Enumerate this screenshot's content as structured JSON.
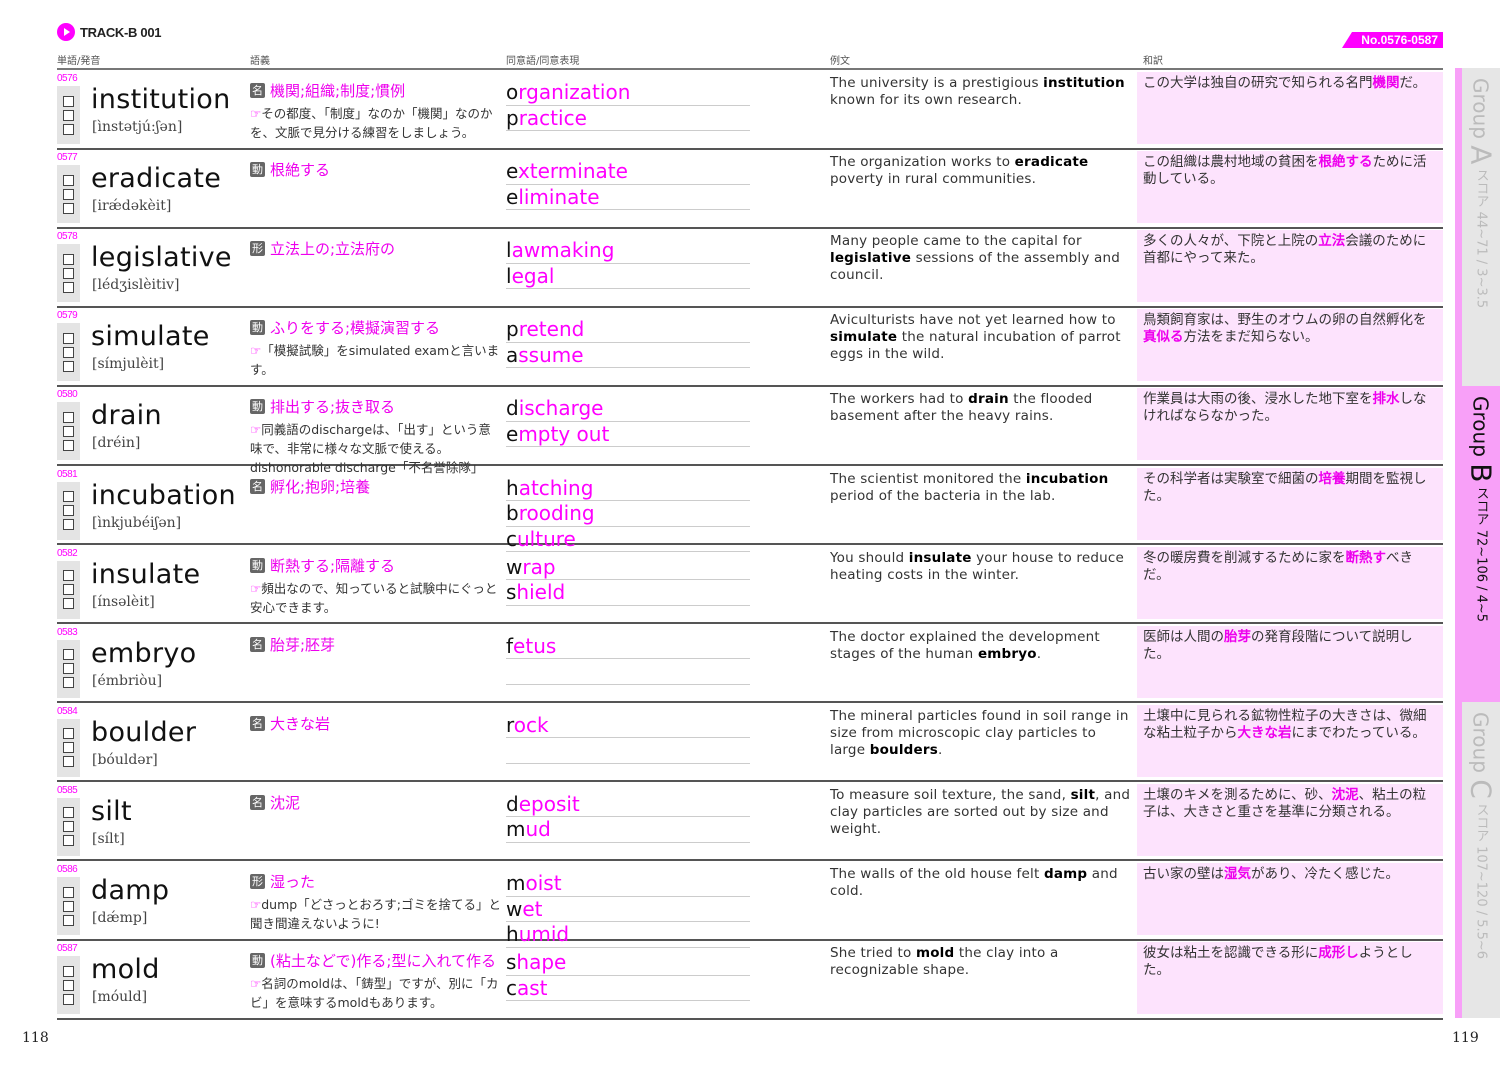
{
  "header": {
    "track": "TRACK-B 001",
    "range": "No.0576-0587",
    "col_word": "単語/発音",
    "col_meaning": "語義",
    "col_synonym": "同意語/同意表現",
    "col_example": "例文",
    "col_translation": "和訳"
  },
  "pos_labels": {
    "noun": "名",
    "verb": "動",
    "adj": "形"
  },
  "icons": {
    "play": "play-circle-icon",
    "note": "pointing-hand-icon",
    "checkbox": "checkbox-icon"
  },
  "colors": {
    "accent": "#ff00ff",
    "translation_bg": "#fde3fd"
  },
  "rows": [
    {
      "num": "0576",
      "word": "institution",
      "ipa": "[ìnstətjú:ʃən]",
      "pos": "名",
      "meaning": "機関;組織;制度;慣例",
      "note": "その都度、「制度」なのか「機関」なのかを、文脈で見分ける練習をしましょう。",
      "synonyms": [
        "organization",
        "practice"
      ],
      "slots": 2,
      "ex": [
        "The university is a prestigious ",
        "institution",
        " known for its own research."
      ],
      "tr": [
        "この大学は独自の研究で知られる名門",
        "機関",
        "だ。"
      ]
    },
    {
      "num": "0577",
      "word": "eradicate",
      "ipa": "[irǽdəkèit]",
      "pos": "動",
      "meaning": "根絶する",
      "note": "",
      "synonyms": [
        "exterminate",
        "eliminate"
      ],
      "slots": 2,
      "ex": [
        "The organization works to ",
        "eradicate",
        " poverty in rural communities."
      ],
      "tr": [
        "この組織は農村地域の貧困を",
        "根絶する",
        "ために活動している。"
      ]
    },
    {
      "num": "0578",
      "word": "legislative",
      "ipa": "[lédʒislèitiv]",
      "pos": "形",
      "meaning": "立法上の;立法府の",
      "note": "",
      "synonyms": [
        "lawmaking",
        "legal"
      ],
      "slots": 2,
      "ex": [
        "Many people came to the capital for ",
        "legislative",
        " sessions of the assembly and council."
      ],
      "tr": [
        "多くの人々が、下院と上院の",
        "立法",
        "会議のために首都にやって来た。"
      ]
    },
    {
      "num": "0579",
      "word": "simulate",
      "ipa": "[símjulèit]",
      "pos": "動",
      "meaning": "ふりをする;模擬演習する",
      "note": "「模擬試験」をsimulated examと言います。",
      "synonyms": [
        "pretend",
        "assume"
      ],
      "slots": 2,
      "ex": [
        "Aviculturists have not yet learned how to ",
        "simulate",
        " the natural incubation of parrot eggs in the wild."
      ],
      "tr": [
        "鳥類飼育家は、野生のオウムの卵の自然孵化を",
        "真似る",
        "方法をまだ知らない。"
      ]
    },
    {
      "num": "0580",
      "word": "drain",
      "ipa": "[dréin]",
      "pos": "動",
      "meaning": "排出する;抜き取る",
      "note": "同義語のdischargeは、「出す」という意味で、非常に様々な文脈で使える。dishonorable discharge「不名誉除隊」",
      "synonyms": [
        "discharge",
        "empty out"
      ],
      "slots": 2,
      "ex": [
        "The workers had to ",
        "drain",
        " the flooded basement after the heavy rains."
      ],
      "tr": [
        "作業員は大雨の後、浸水した地下室を",
        "排水",
        "しなければならなかった。"
      ]
    },
    {
      "num": "0581",
      "word": "incubation",
      "ipa": "[ìnkjubéiʃən]",
      "pos": "名",
      "meaning": "孵化;抱卵;培養",
      "note": "",
      "synonyms": [
        "hatching",
        "brooding",
        "culture"
      ],
      "slots": 3,
      "ex": [
        "The scientist monitored the ",
        "incubation",
        " period of the bacteria in the lab."
      ],
      "tr": [
        "その科学者は実験室で細菌の",
        "培養",
        "期間を監視した。"
      ]
    },
    {
      "num": "0582",
      "word": "insulate",
      "ipa": "[ínsəlèit]",
      "pos": "動",
      "meaning": "断熱する;隔離する",
      "note": "頻出なので、知っていると試験中にぐっと安心できます。",
      "synonyms": [
        "wrap",
        "shield"
      ],
      "slots": 2,
      "ex": [
        "You should ",
        "insulate",
        " your house to reduce heating costs in the winter."
      ],
      "tr": [
        "冬の暖房費を削減するために家を",
        "断熱す",
        "べきだ。"
      ]
    },
    {
      "num": "0583",
      "word": "embryo",
      "ipa": "[émbriòu]",
      "pos": "名",
      "meaning": "胎芽;胚芽",
      "note": "",
      "synonyms": [
        "fetus"
      ],
      "slots": 2,
      "ex": [
        "The doctor explained the development stages of the human ",
        "embryo",
        "."
      ],
      "tr": [
        "医師は人間の",
        "胎芽",
        "の発育段階について説明した。"
      ]
    },
    {
      "num": "0584",
      "word": "boulder",
      "ipa": "[bóuldər]",
      "pos": "名",
      "meaning": "大きな岩",
      "note": "",
      "synonyms": [
        "rock"
      ],
      "slots": 2,
      "ex": [
        "The mineral particles found in soil range in size from microscopic clay particles to large ",
        "boulders",
        "."
      ],
      "tr": [
        "土壌中に見られる鉱物性粒子の大きさは、微細な粘土粒子から",
        "大きな岩",
        "にまでわたっている。"
      ]
    },
    {
      "num": "0585",
      "word": "silt",
      "ipa": "[sílt]",
      "pos": "名",
      "meaning": "沈泥",
      "note": "",
      "synonyms": [
        "deposit",
        "mud"
      ],
      "slots": 2,
      "ex": [
        "To measure soil texture, the sand, ",
        "silt",
        ", and clay particles are sorted out by size and weight."
      ],
      "tr": [
        "土壌のキメを測るために、砂、",
        "沈泥",
        "、粘土の粒子は、大きさと重さを基準に分類される。"
      ]
    },
    {
      "num": "0586",
      "word": "damp",
      "ipa": "[dǽmp]",
      "pos": "形",
      "meaning": "湿った",
      "note": "dump「どさっとおろす;ゴミを捨てる」と聞き間違えないように!",
      "synonyms": [
        "moist",
        "wet",
        "humid"
      ],
      "slots": 3,
      "ex": [
        "The walls of the old house felt ",
        "damp",
        " and cold."
      ],
      "tr": [
        "古い家の壁は",
        "湿気",
        "があり、冷たく感じた。"
      ]
    },
    {
      "num": "0587",
      "word": "mold",
      "ipa": "[móuld]",
      "pos": "動",
      "meaning": "(粘土などで)作る;型に入れて作る",
      "note": "名詞のmoldは、「鋳型」ですが、別に「カビ」を意味するmoldもあります。",
      "synonyms": [
        "shape",
        "cast"
      ],
      "slots": 2,
      "ex": [
        "She tried to ",
        "mold",
        " the clay into a recognizable shape."
      ],
      "tr": [
        "彼女は粘土を認識できる形に",
        "成形し",
        "ようとした。"
      ]
    }
  ],
  "tabs": [
    {
      "group": "Group ",
      "letter": "A",
      "score": " スコア 44~71 / 3~3.5",
      "active": false
    },
    {
      "group": "Group ",
      "letter": "B",
      "score": " スコア 72~106 / 4~5",
      "active": true
    },
    {
      "group": "Group ",
      "letter": "C",
      "score": " スコア 107~120 / 5.5~6",
      "active": false
    }
  ],
  "pages": {
    "left": "118",
    "right": "119"
  }
}
